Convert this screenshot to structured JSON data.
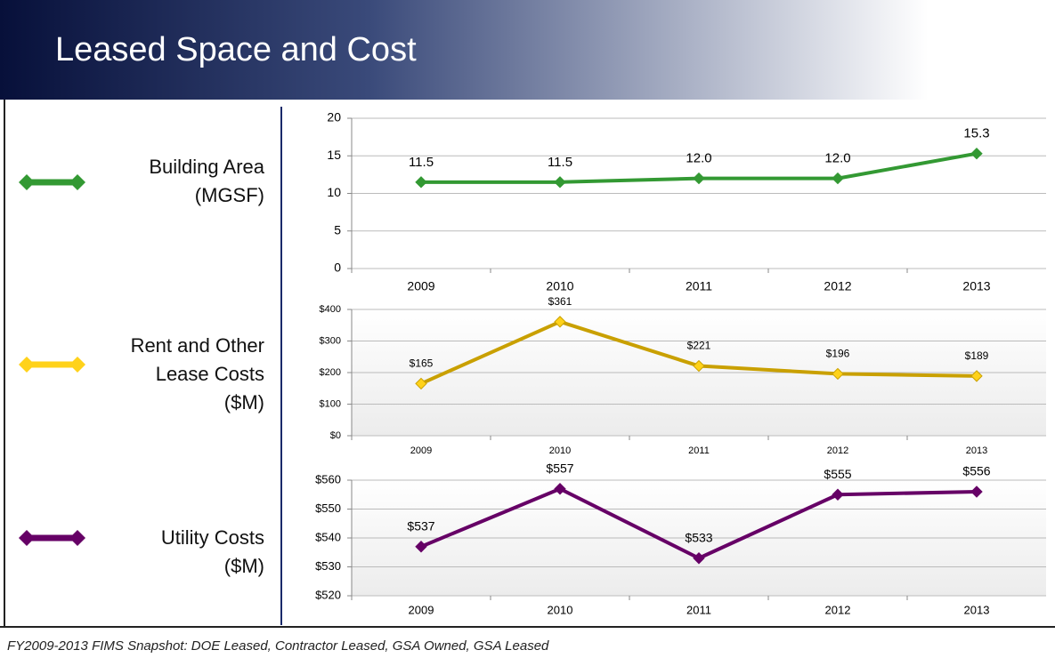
{
  "title": "Leased Space and Cost",
  "footer": "FY2009-2013 FIMS Snapshot: DOE Leased, Contractor Leased, GSA Owned, GSA Leased",
  "chart_data": [
    {
      "type": "line",
      "categories": [
        "2009",
        "2010",
        "2011",
        "2012",
        "2013"
      ],
      "series": [
        {
          "name": "Building Area (MGSF)",
          "color": "#339933",
          "marker_color": "#339933",
          "values": [
            11.5,
            11.5,
            12.0,
            12.0,
            15.3
          ],
          "value_labels": [
            "11.5",
            "11.5",
            "12.0",
            "12.0",
            "15.3"
          ]
        }
      ],
      "ylim": [
        0,
        20
      ],
      "yticks": [
        0,
        5,
        10,
        15,
        20
      ],
      "grid": true
    },
    {
      "type": "line",
      "categories": [
        "2009",
        "2010",
        "2011",
        "2012",
        "2013"
      ],
      "series": [
        {
          "name": "Rent and Other Lease Costs ($M)",
          "color": "#c9a000",
          "marker_color": "#ffd21a",
          "values": [
            165,
            361,
            221,
            196,
            189
          ],
          "value_labels": [
            "$165",
            "$361",
            "$221",
            "$196",
            "$189"
          ]
        }
      ],
      "ylim": [
        0,
        400
      ],
      "yticks": [
        {
          "value": 0,
          "label": "$0"
        },
        {
          "value": 100,
          "label": "$100"
        },
        {
          "value": 200,
          "label": "$200"
        },
        {
          "value": 300,
          "label": "$300"
        },
        {
          "value": 400,
          "label": "$400"
        }
      ],
      "grid": true
    },
    {
      "type": "line",
      "categories": [
        "2009",
        "2010",
        "2011",
        "2012",
        "2013"
      ],
      "series": [
        {
          "name": "Utility Costs ($M)",
          "color": "#660066",
          "marker_color": "#660066",
          "values": [
            537,
            557,
            533,
            555,
            556
          ],
          "value_labels": [
            "$537",
            "$557",
            "$533",
            "$555",
            "$556"
          ]
        }
      ],
      "ylim": [
        520,
        560
      ],
      "yticks": [
        {
          "value": 520,
          "label": "$520"
        },
        {
          "value": 530,
          "label": "$530"
        },
        {
          "value": 540,
          "label": "$540"
        },
        {
          "value": 550,
          "label": "$550"
        },
        {
          "value": 560,
          "label": "$560"
        }
      ],
      "grid": true
    }
  ]
}
